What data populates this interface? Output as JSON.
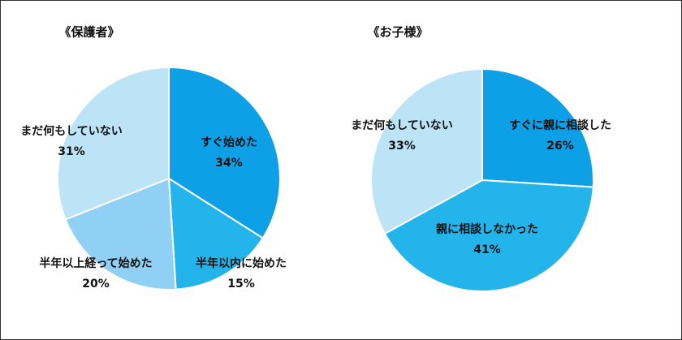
{
  "chart_data": [
    {
      "type": "pie",
      "title": "《保護者》",
      "categories": [
        "すぐ始めた",
        "半年以内に始めた",
        "半年以上経って始めた",
        "まだ何もしていない"
      ],
      "values": [
        34,
        15,
        20,
        31
      ],
      "value_labels": [
        "34%",
        "15%",
        "20%",
        "31%"
      ],
      "colors": [
        "#0ea0e6",
        "#23b4ec",
        "#8fd0f4",
        "#bde3f7"
      ]
    },
    {
      "type": "pie",
      "title": "《お子様》",
      "categories": [
        "すぐに親に相談した",
        "親に相談しなかった",
        "まだ何もしていない"
      ],
      "values": [
        26,
        41,
        33
      ],
      "value_labels": [
        "26%",
        "41%",
        "33%"
      ],
      "colors": [
        "#0ea0e6",
        "#23b4ec",
        "#bde3f7"
      ]
    }
  ]
}
